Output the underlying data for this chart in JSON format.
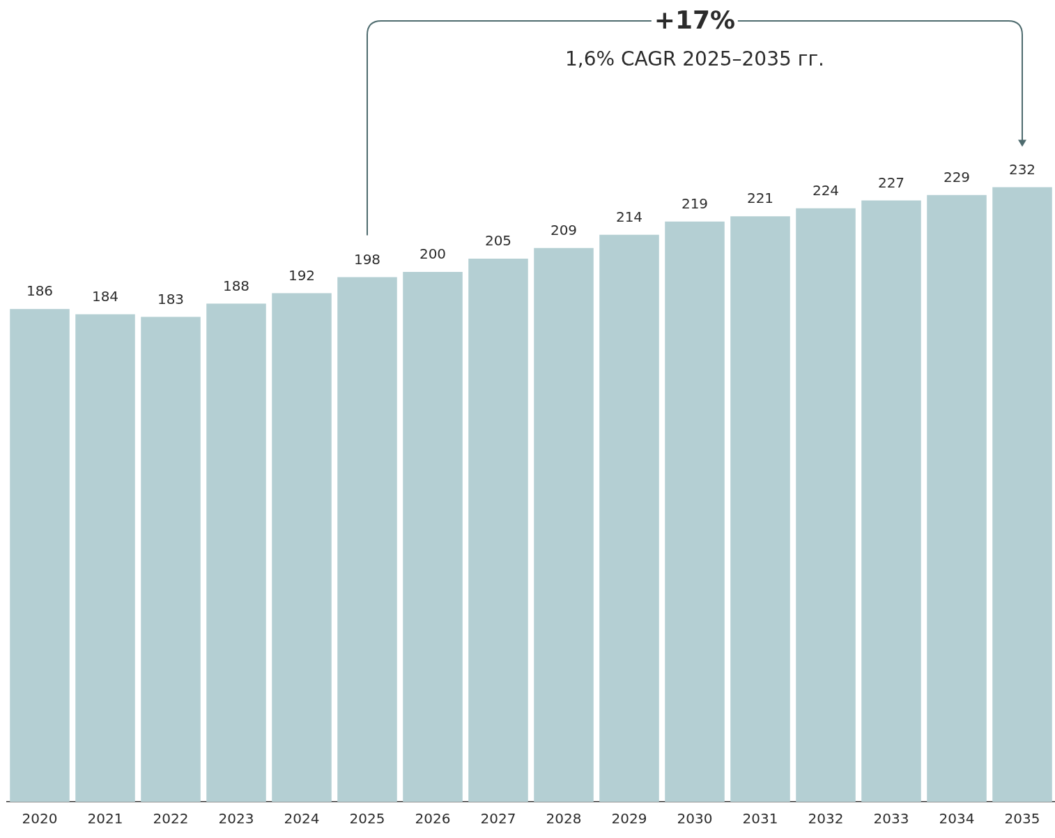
{
  "chart_data": {
    "type": "bar",
    "categories": [
      "2020",
      "2021",
      "2022",
      "2023",
      "2024",
      "2025",
      "2026",
      "2027",
      "2028",
      "2029",
      "2030",
      "2031",
      "2032",
      "2033",
      "2034",
      "2035"
    ],
    "values": [
      186,
      184,
      183,
      188,
      192,
      198,
      200,
      205,
      209,
      214,
      219,
      221,
      224,
      227,
      229,
      232
    ],
    "color": "#b4cfd3",
    "data_labels": true,
    "tick_labels": "x",
    "grid": false,
    "legend": false,
    "annotations": [
      "+17%",
      "1,6% CAGR 2025–2035 гг."
    ]
  }
}
